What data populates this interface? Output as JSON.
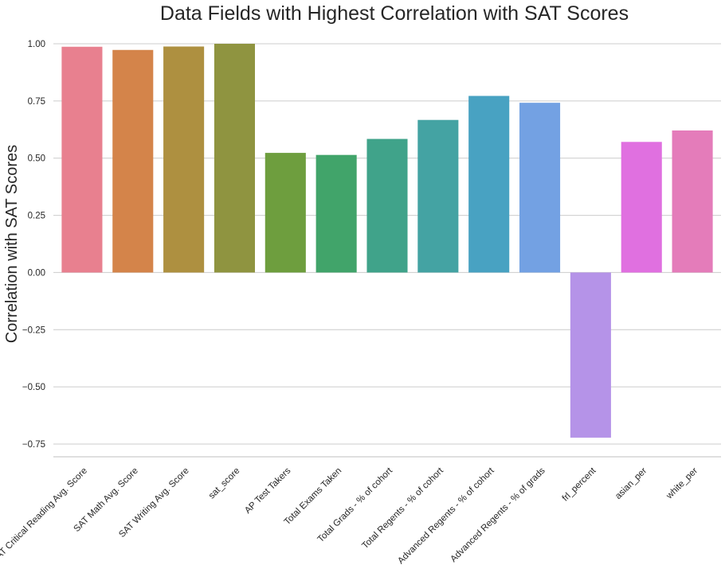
{
  "chart_data": {
    "type": "bar",
    "title": "Data Fields with Highest Correlation with SAT Scores",
    "xlabel": "",
    "ylabel": "Correlation with SAT Scores",
    "ylim": [
      -0.8,
      1.05
    ],
    "yticks": [
      -0.75,
      -0.5,
      -0.25,
      0.0,
      0.25,
      0.5,
      0.75,
      1.0
    ],
    "ytick_labels": [
      "−0.75",
      "−0.50",
      "−0.25",
      "0.00",
      "0.25",
      "0.50",
      "0.75",
      "1.00"
    ],
    "grid": "horizontal",
    "categories": [
      "SAT Critical Reading Avg. Score",
      "SAT Math Avg. Score",
      "SAT Writing Avg. Score",
      "sat_score",
      "AP Test Takers",
      "Total Exams Taken",
      "Total Grads - % of cohort",
      "Total Regents - % of cohort",
      "Advanced Regents - % of cohort",
      "Advanced Regents - % of grads",
      "frl_percent",
      "asian_per",
      "white_per"
    ],
    "values": [
      0.987,
      0.973,
      0.988,
      1.0,
      0.523,
      0.514,
      0.584,
      0.667,
      0.772,
      0.742,
      -0.722,
      0.571,
      0.621
    ],
    "colors": [
      "#e8808f",
      "#d4844a",
      "#ae9040",
      "#8f9440",
      "#6e9e3e",
      "#41a46a",
      "#40a38a",
      "#44a3a3",
      "#48a2c2",
      "#73a1e3",
      "#b593e8",
      "#e070e0",
      "#e47cba"
    ]
  }
}
